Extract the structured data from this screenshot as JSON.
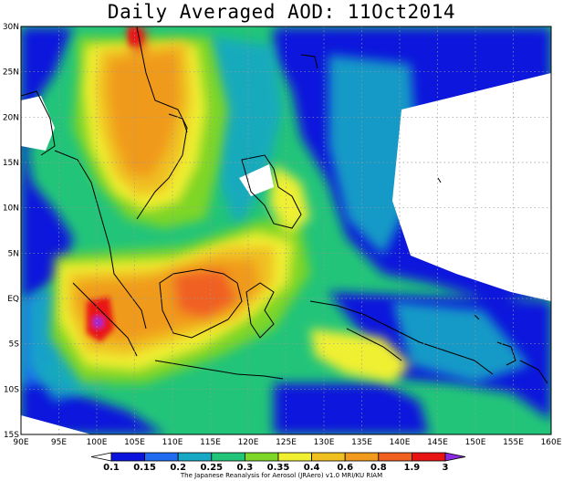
{
  "title": "Daily Averaged AOD: 11Oct2014",
  "credit": "The Japanese Reanalysis for Aerosol (JRAero) v1.0 MRI/KU RIAM",
  "map": {
    "lon_range": [
      90,
      160
    ],
    "lat_range": [
      -15,
      30
    ],
    "lon_ticks": [
      "90E",
      "95E",
      "100E",
      "105E",
      "110E",
      "115E",
      "120E",
      "125E",
      "130E",
      "135E",
      "140E",
      "145E",
      "150E",
      "155E",
      "160E"
    ],
    "lat_ticks": [
      "30N",
      "25N",
      "20N",
      "15N",
      "10N",
      "5N",
      "EQ",
      "5S",
      "10S",
      "15S"
    ],
    "grid": "dotted gray every 5 degrees"
  },
  "colorbar": {
    "labels": [
      "0.1",
      "0.15",
      "0.2",
      "0.25",
      "0.3",
      "0.35",
      "0.4",
      "0.6",
      "0.8",
      "1.9",
      "3"
    ],
    "colors": [
      "#ffffff",
      "#0a14dc",
      "#1f6cf0",
      "#16a8c4",
      "#22c47a",
      "#7ed628",
      "#f0f030",
      "#f0c020",
      "#f09a1e",
      "#f06020",
      "#e81414",
      "#8a2be2"
    ]
  }
}
